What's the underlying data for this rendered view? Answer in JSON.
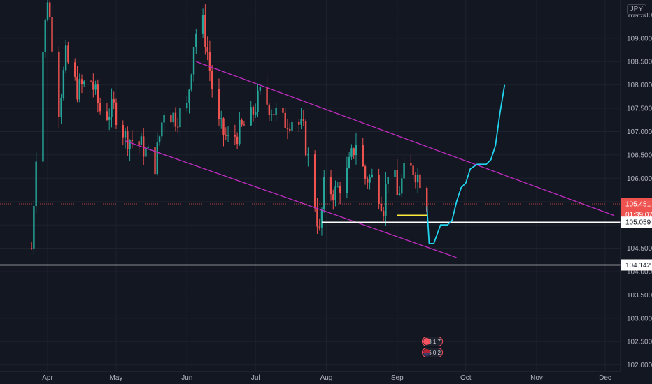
{
  "colors": {
    "background": "#131722",
    "grid": "#1e222d",
    "up": "#26a69a",
    "down": "#ef5350",
    "channel": "#c02cc0",
    "projection": "#22d3ee",
    "level": "#ffffff",
    "yellow": "#ffeb3b",
    "price_badge": "#ef5350",
    "axis_text": "#b2b5be"
  },
  "header": {
    "currency": "JPY"
  },
  "events": [
    {
      "label": "3 1 7",
      "icon": "flag-icon"
    },
    {
      "label": "5.6 0 2",
      "icon": "us-flag-icon"
    }
  ],
  "chart_data": {
    "type": "candlestick",
    "x_ticks": [
      "Apr",
      "May",
      "Jun",
      "Jul",
      "Aug",
      "Sep",
      "Oct",
      "Nov",
      "Dec"
    ],
    "y_ticks": [
      "109.500",
      "109.000",
      "108.500",
      "108.000",
      "107.500",
      "107.000",
      "106.500",
      "106.000",
      "105.500",
      "105.000",
      "104.500",
      "104.000",
      "103.500",
      "103.000",
      "102.500",
      "102.000"
    ],
    "y_range": [
      101.95,
      109.7
    ],
    "current_price": {
      "value": 105.451,
      "label": "105.451",
      "countdown": "01:39:07"
    },
    "horizontal_levels": [
      {
        "value": 105.059,
        "label": "105.059"
      },
      {
        "value": 104.142,
        "label": "104.142"
      }
    ],
    "price_path": {
      "points": [
        [
          "Mar 25",
          104.5
        ],
        [
          "Mar 28",
          107.6
        ],
        [
          "Apr 1",
          109.9
        ],
        [
          "Apr 6",
          107.5
        ],
        [
          "Apr 9",
          108.6
        ],
        [
          "Apr 14",
          107.9
        ],
        [
          "Apr 20",
          108.1
        ],
        [
          "Apr 25",
          107.3
        ],
        [
          "Apr 30",
          107.5
        ],
        [
          "May 5",
          106.9
        ],
        [
          "May 12",
          106.7
        ],
        [
          "May 18",
          106.3
        ],
        [
          "May 22",
          107.5
        ],
        [
          "May 27",
          107.3
        ],
        [
          "Jun 1",
          107.5
        ],
        [
          "Jun 4",
          108.9
        ],
        [
          "Jun 7",
          109.6
        ],
        [
          "Jun 10",
          108.7
        ],
        [
          "Jun 14",
          107.2
        ],
        [
          "Jun 19",
          106.8
        ],
        [
          "Jun 24",
          107.0
        ],
        [
          "Jun 29",
          107.3
        ],
        [
          "Jul 3",
          107.8
        ],
        [
          "Jul 8",
          107.5
        ],
        [
          "Jul 13",
          107.2
        ],
        [
          "Jul 18",
          107.3
        ],
        [
          "Jul 22",
          107.0
        ],
        [
          "Jul 26",
          105.8
        ],
        [
          "Jul 29",
          104.8
        ],
        [
          "Jul 31",
          105.8
        ],
        [
          "Aug 5",
          105.7
        ],
        [
          "Aug 10",
          106.1
        ],
        [
          "Aug 14",
          106.8
        ],
        [
          "Aug 18",
          106.0
        ],
        [
          "Aug 22",
          106.0
        ],
        [
          "Aug 26",
          105.4
        ],
        [
          "Aug 29",
          106.6
        ],
        [
          "Sep 1",
          105.6
        ],
        [
          "Sep 4",
          106.1
        ],
        [
          "Sep 8",
          106.2
        ],
        [
          "Sep 11",
          106.0
        ],
        [
          "Sep 14",
          105.45
        ]
      ]
    },
    "channel": {
      "upper": [
        [
          "Jun 5",
          108.5
        ],
        [
          "Dec 5",
          105.2
        ]
      ],
      "lower": [
        [
          "May 5",
          106.8
        ],
        [
          "Sep 27",
          104.3
        ]
      ]
    },
    "yellow_line": {
      "from": [
        "Sep 1",
        105.2
      ],
      "to": [
        "Sep 14",
        105.2
      ]
    },
    "white_ray_start": "Jul 30",
    "projection": [
      [
        "Sep 14",
        105.4
      ],
      [
        "Sep 15",
        104.6
      ],
      [
        "Sep 17",
        104.6
      ],
      [
        "Sep 20",
        105.0
      ],
      [
        "Sep 23",
        105.0
      ],
      [
        "Sep 25",
        105.1
      ],
      [
        "Sep 27",
        105.5
      ],
      [
        "Sep 29",
        105.8
      ],
      [
        "Oct 1",
        105.9
      ],
      [
        "Oct 3",
        106.2
      ],
      [
        "Oct 6",
        106.3
      ],
      [
        "Oct 8",
        106.3
      ],
      [
        "Oct 10",
        106.3
      ],
      [
        "Oct 12",
        106.4
      ],
      [
        "Oct 14",
        106.7
      ],
      [
        "Oct 16",
        107.4
      ],
      [
        "Oct 18",
        108.0
      ]
    ]
  }
}
